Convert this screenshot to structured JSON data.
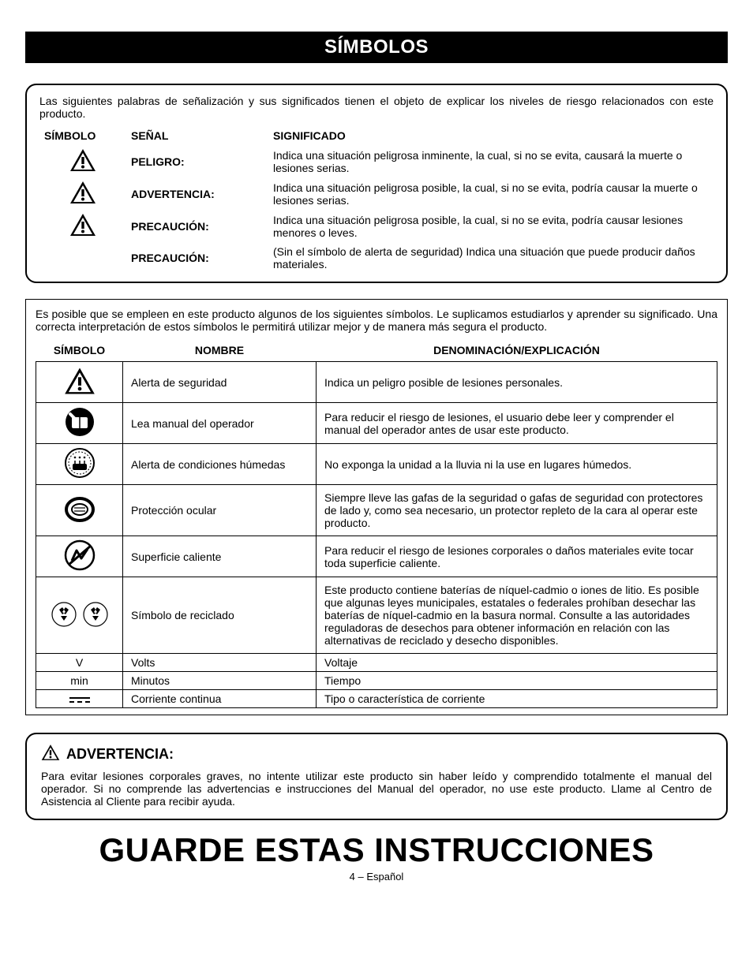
{
  "header": {
    "title": "SÍMBOLOS"
  },
  "sigBox": {
    "intro": "Las siguientes palabras de señalización y sus significados tienen el objeto de explicar los niveles de riesgo relacionados con este producto.",
    "headers": {
      "symbol": "SÍMBOLO",
      "signal": "SEÑAL",
      "meaning": "SIGNIFICADO"
    },
    "rows": [
      {
        "signal": "PELIGRO:",
        "meaning": "Indica una situación peligrosa inminente, la cual, si no se evita, causará la muerte o lesiones serias.",
        "hasIcon": true
      },
      {
        "signal": "ADVERTENCIA:",
        "meaning": "Indica una situación peligrosa posible, la cual, si no se evita, podría causar la muerte o lesiones serias.",
        "hasIcon": true
      },
      {
        "signal": "PRECAUCIÓN:",
        "meaning": "Indica una situación peligrosa posible, la cual, si no se evita, podría causar lesiones menores o leves.",
        "hasIcon": true
      },
      {
        "signal": "PRECAUCIÓN:",
        "meaning": "(Sin el símbolo de alerta de seguridad) Indica una situación que puede producir daños materiales.",
        "hasIcon": false
      }
    ]
  },
  "symTable": {
    "intro": "Es posible que se empleen en este producto algunos de los siguientes símbolos. Le suplicamos estudiarlos y aprender su significado. Una correcta interpretación de estos símbolos le permitirá utilizar mejor y de manera más segura el producto.",
    "headers": {
      "symbol": "SÍMBOLO",
      "name": "NOMBRE",
      "desc": "DENOMINACIÓN/EXPLICACIÓN"
    },
    "rows": [
      {
        "icon": "alert",
        "name": "Alerta de seguridad",
        "desc": "Indica un peligro posible de lesiones personales."
      },
      {
        "icon": "manual",
        "name": "Lea manual del operador",
        "desc": "Para reducir el riesgo de lesiones, el usuario debe leer y comprender el manual del operador antes de usar este producto."
      },
      {
        "icon": "wet",
        "name": "Alerta de condiciones húmedas",
        "desc": "No exponga la unidad a la lluvia ni la use en lugares húmedos."
      },
      {
        "icon": "eye",
        "name": "Protección ocular",
        "desc": "Siempre lleve las gafas de la seguridad o gafas de seguridad con protectores de lado y, como sea necesario, un protector repleto de la cara al operar este producto."
      },
      {
        "icon": "hot",
        "name": "Superficie caliente",
        "desc": "Para reducir el riesgo de lesiones corporales o daños materiales evite tocar toda superficie caliente."
      },
      {
        "icon": "recycle",
        "name": "Símbolo de reciclado",
        "desc": "Este producto contiene baterías de níquel-cadmio o iones de litio. Es posible que algunas leyes municipales, estatales o federales prohíban desechar las baterías de níquel-cadmio en la basura normal. Consulte a las autoridades reguladoras de desechos para obtener información en relación con las alternativas de reciclado y desecho disponibles."
      },
      {
        "icon": "V",
        "name": "Volts",
        "desc": "Voltaje",
        "thin": true,
        "textIcon": "V"
      },
      {
        "icon": "min",
        "name": "Minutos",
        "desc": "Tiempo",
        "thin": true,
        "textIcon": "min"
      },
      {
        "icon": "dc",
        "name": "Corriente continua",
        "desc": "Tipo o característica de corriente",
        "thin": true
      }
    ]
  },
  "warning": {
    "title": "ADVERTENCIA:",
    "body": "Para evitar lesiones corporales graves, no intente utilizar este producto sin haber leído y comprendido totalmente el manual del operador. Si no comprende las advertencias e instrucciones del Manual del operador, no use este producto. Llame al Centro de Asistencia al Cliente para recibir ayuda."
  },
  "footer": {
    "big": "GUARDE ESTAS INSTRUCCIONES",
    "page": "4 – Español"
  },
  "colors": {
    "black": "#000000",
    "white": "#ffffff"
  }
}
